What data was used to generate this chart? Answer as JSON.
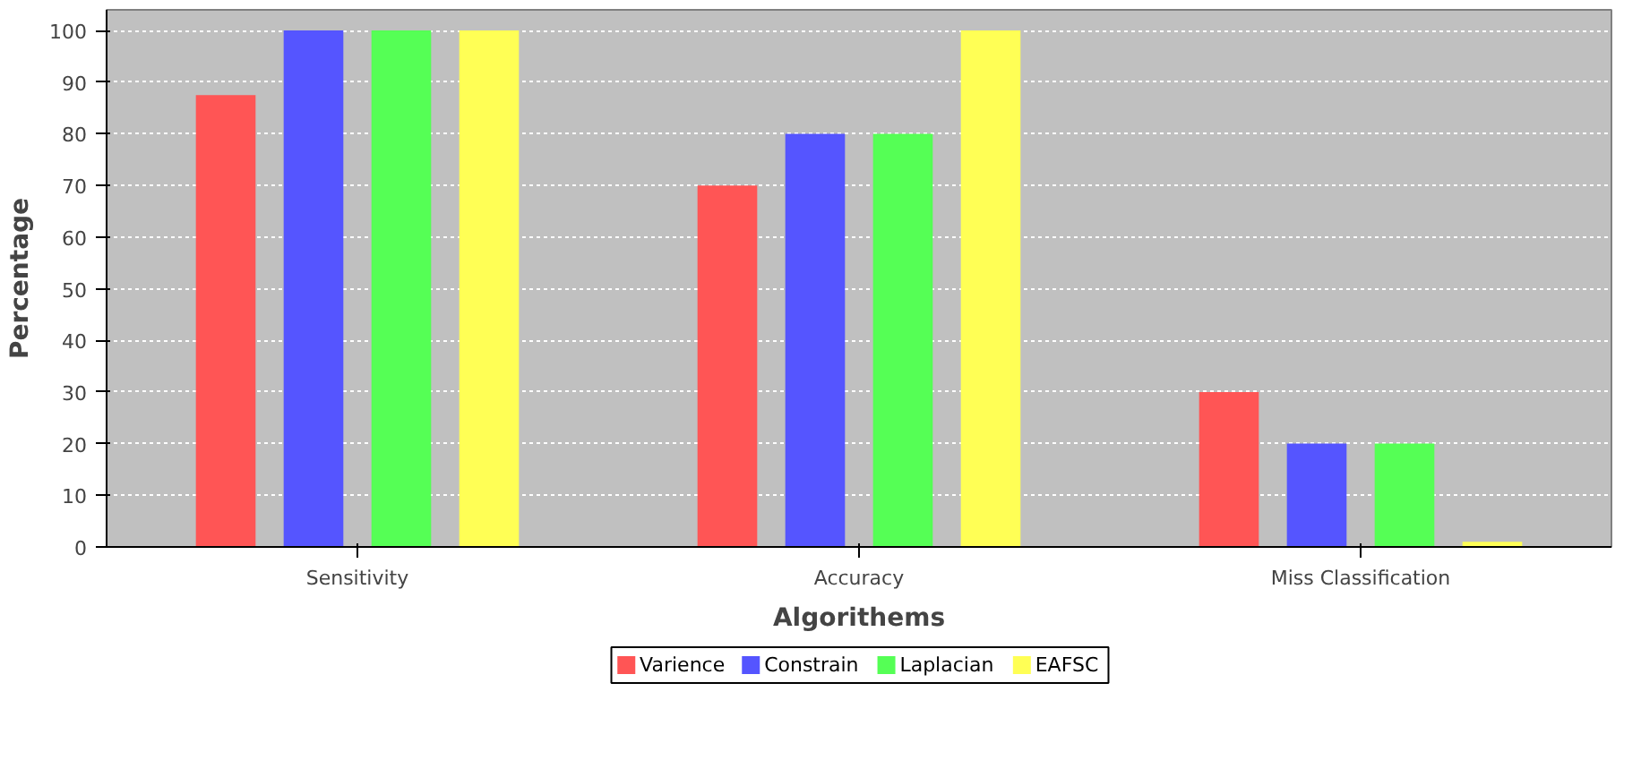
{
  "chart_data": {
    "type": "bar",
    "xlabel": "Algorithems",
    "ylabel": "Percentage",
    "categories": [
      "Sensitivity",
      "Accuracy",
      "Miss Classification"
    ],
    "series": [
      {
        "name": "Varience",
        "color": "#ff5555",
        "values": [
          87.5,
          70,
          30
        ]
      },
      {
        "name": "Constrain",
        "color": "#5555ff",
        "values": [
          100,
          80,
          20
        ]
      },
      {
        "name": "Laplacian",
        "color": "#55ff55",
        "values": [
          100,
          80,
          20
        ]
      },
      {
        "name": "EAFSC",
        "color": "#ffff55",
        "values": [
          100,
          100,
          1
        ]
      }
    ],
    "ylim": [
      0,
      104
    ],
    "yticks": [
      0,
      10,
      20,
      30,
      40,
      50,
      60,
      70,
      80,
      90,
      100
    ],
    "grid": "y",
    "legend": "bottom"
  }
}
